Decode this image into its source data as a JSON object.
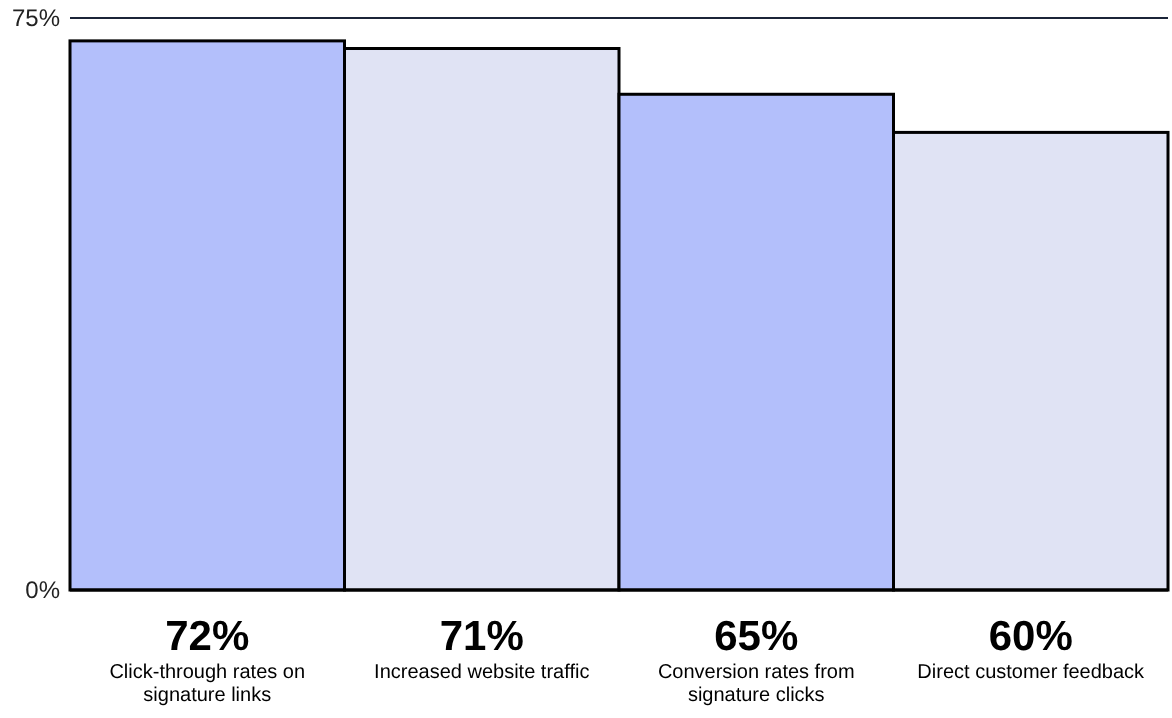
{
  "chart_data": {
    "type": "bar",
    "categories": [
      "Click-through rates on signature links",
      "Increased website traffic",
      "Conversion rates from signature clicks",
      "Direct customer feedback"
    ],
    "values": [
      72,
      71,
      65,
      60
    ],
    "colors": [
      "#b3bffb",
      "#e0e3f4",
      "#b3bffb",
      "#e0e3f4"
    ],
    "value_labels": [
      "72%",
      "71%",
      "65%",
      "60%"
    ],
    "ylim": [
      0,
      75
    ],
    "yticks": [
      {
        "value": 0,
        "label": "0%"
      },
      {
        "value": 75,
        "label": "75%"
      }
    ],
    "grid": "y"
  }
}
